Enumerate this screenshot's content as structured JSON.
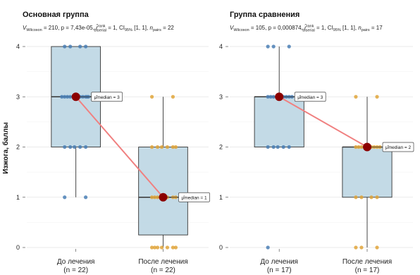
{
  "y_axis_title": "Изжога, баллы",
  "colors": {
    "before": "#4a7fb5",
    "after": "#e0a43a",
    "box": "#b9d3e2",
    "median_point": "#8b0000",
    "connector": "#f08080"
  },
  "chart_data": [
    {
      "type": "box",
      "title": "Основная группа",
      "subtitle": {
        "v_symbol": "V",
        "v_sub": "Wilcoxon",
        "v_eq": " = 210, ",
        "p_text": "p = 7,43e-05, ",
        "r_symbol": "r̂",
        "r_sup": "rank",
        "r_sub": "biserial",
        "r_eq": " = 1, ",
        "ci_symbol": "CI",
        "ci_sub": "95%",
        "ci_eq": " [1, 1], ",
        "n_symbol": "n",
        "n_sub": "pairs",
        "n_eq": " = 22"
      },
      "ylim": [
        0,
        4
      ],
      "yticks": [
        "0",
        "1",
        "2",
        "3",
        "4"
      ],
      "categories": [
        {
          "name": "До лечения",
          "n_label": "(n = 22)",
          "q1": 2,
          "median": 3,
          "q3": 4,
          "whisker_low": 1,
          "whisker_high": 4,
          "points": [
            4,
            4,
            4,
            4,
            3,
            3,
            3,
            3,
            3,
            3,
            3,
            3,
            3,
            3,
            3,
            2,
            2,
            2,
            2,
            2,
            1,
            1
          ],
          "median_label": "μ̂median = 3"
        },
        {
          "name": "После лечения",
          "n_label": "(n = 22)",
          "q1": 0.25,
          "median": 1,
          "q3": 2,
          "whisker_low": 0,
          "whisker_high": 3,
          "points": [
            3,
            3,
            2,
            2,
            2,
            2,
            2,
            2,
            1,
            1,
            1,
            1,
            1,
            1,
            1,
            0,
            0,
            0,
            0,
            0,
            0,
            0
          ],
          "median_label": "μ̂median = 1"
        }
      ]
    },
    {
      "type": "box",
      "title": "Группа сравнения",
      "subtitle": {
        "v_symbol": "V",
        "v_sub": "Wilcoxon",
        "v_eq": " = 105, ",
        "p_text": "p = 0,000874, ",
        "r_symbol": "r̂",
        "r_sup": "rank",
        "r_sub": "biserial",
        "r_eq": " = 1, ",
        "ci_symbol": "CI",
        "ci_sub": "95%",
        "ci_eq": " [1, 1], ",
        "n_symbol": "n",
        "n_sub": "pairs",
        "n_eq": " = 17"
      },
      "ylim": [
        0,
        4
      ],
      "yticks": [
        "0",
        "1",
        "2",
        "3",
        "4"
      ],
      "categories": [
        {
          "name": "До лечения",
          "n_label": "(n = 17)",
          "q1": 2,
          "median": 3,
          "q3": 3,
          "whisker_low": 2,
          "whisker_high": 4,
          "points": [
            4,
            4,
            4,
            3,
            3,
            3,
            3,
            3,
            3,
            3,
            3,
            2,
            2,
            2,
            2,
            2,
            0
          ],
          "median_label": "μ̂median = 3"
        },
        {
          "name": "После лечения",
          "n_label": "(n = 17)",
          "q1": 1,
          "median": 2,
          "q3": 2,
          "whisker_low": 0,
          "whisker_high": 3,
          "points": [
            3,
            3,
            2,
            2,
            2,
            2,
            2,
            2,
            2,
            2,
            1,
            1,
            1,
            1,
            0,
            0,
            0
          ],
          "median_label": "μ̂median = 2"
        }
      ]
    }
  ]
}
